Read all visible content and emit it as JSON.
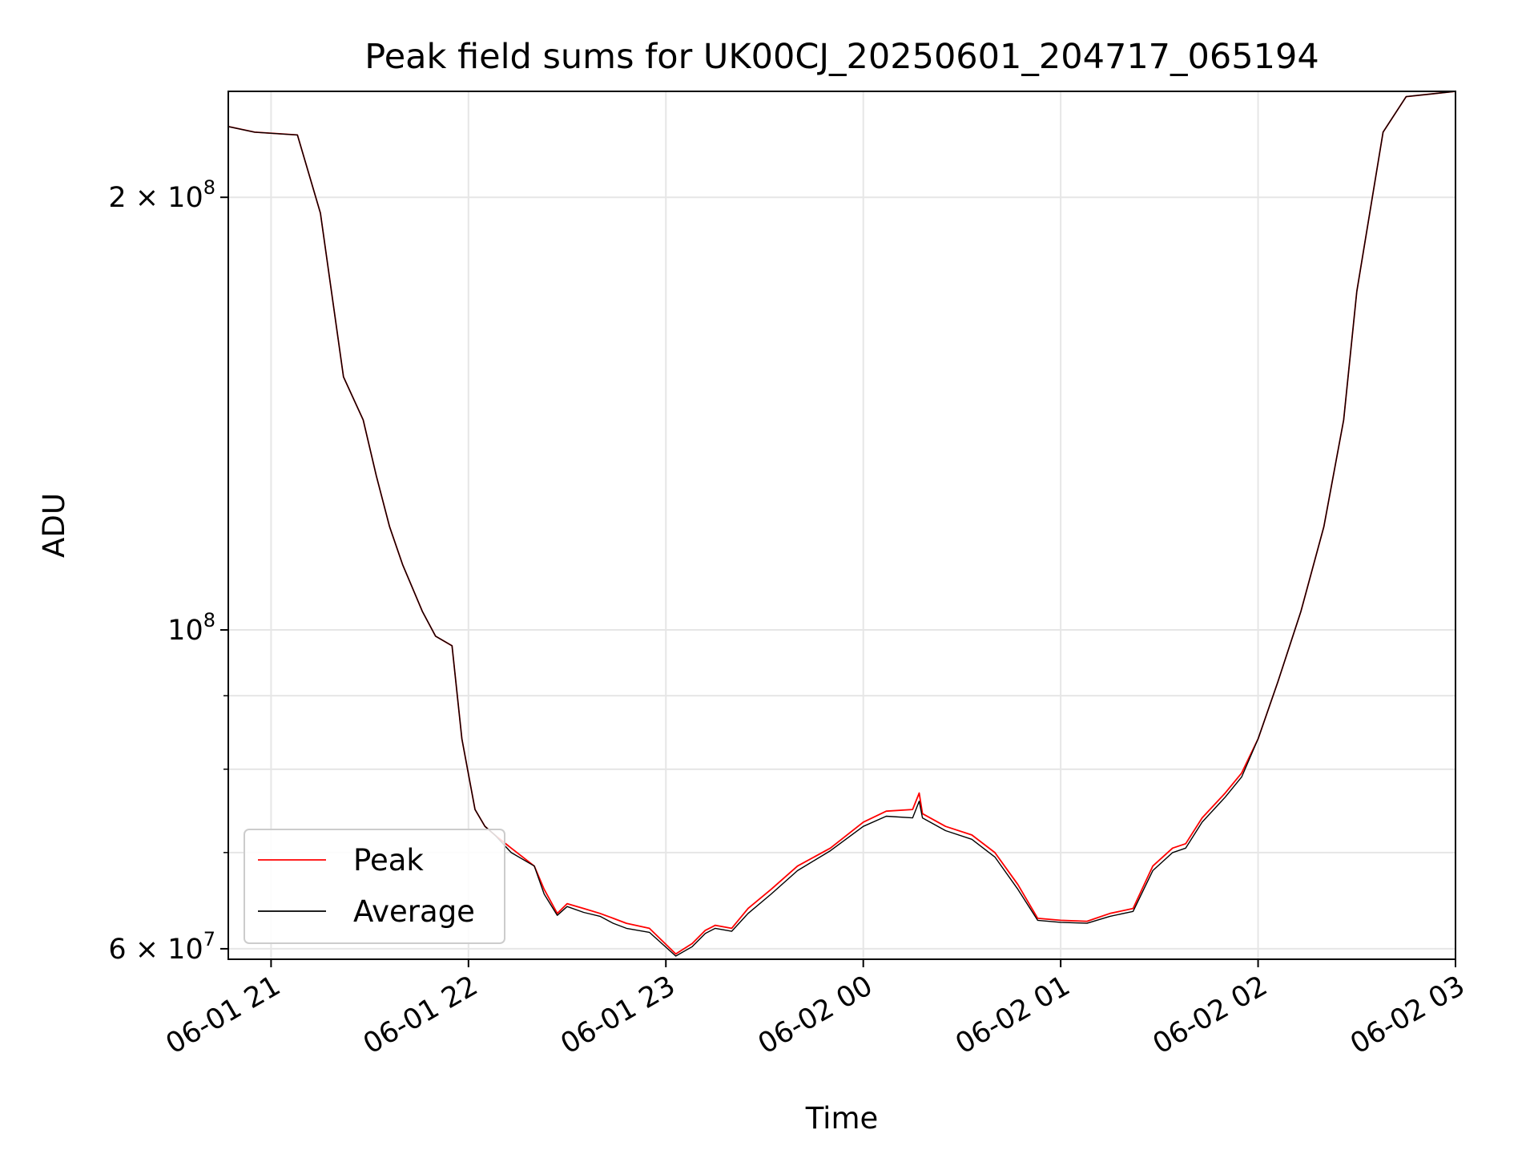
{
  "chart_data": {
    "type": "line",
    "title": "Peak field sums for UK00CJ_20250601_204717_065194",
    "xlabel": "Time",
    "ylabel": "ADU",
    "y_scale": "log",
    "ylim": [
      59000000,
      237000000
    ],
    "xlim": [
      "2025-06-01 20:47",
      "2025-06-02 03:00"
    ],
    "grid": true,
    "legend_placement": "lower-left",
    "x_tick_labels": [
      "06-01 21",
      "06-01 22",
      "06-01 23",
      "06-02 00",
      "06-02 01",
      "06-02 02",
      "06-02 03"
    ],
    "y_tick_labels": [
      {
        "label": "2 × 10",
        "exp": "8",
        "value": 200000000
      },
      {
        "label": "10",
        "exp": "8",
        "value": 100000000
      },
      {
        "label": "6 × 10",
        "exp": "7",
        "value": 60000000
      }
    ],
    "x": [
      "2025-06-01 20:47",
      "2025-06-01 20:55",
      "2025-06-01 21:08",
      "2025-06-01 21:15",
      "2025-06-01 21:22",
      "2025-06-01 21:28",
      "2025-06-01 21:32",
      "2025-06-01 21:36",
      "2025-06-01 21:40",
      "2025-06-01 21:46",
      "2025-06-01 21:50",
      "2025-06-01 21:55",
      "2025-06-01 21:58",
      "2025-06-01 22:02",
      "2025-06-01 22:05",
      "2025-06-01 22:08",
      "2025-06-01 22:13",
      "2025-06-01 22:20",
      "2025-06-01 22:23",
      "2025-06-01 22:27",
      "2025-06-01 22:30",
      "2025-06-01 22:35",
      "2025-06-01 22:40",
      "2025-06-01 22:44",
      "2025-06-01 22:48",
      "2025-06-01 22:55",
      "2025-06-01 23:03",
      "2025-06-01 23:08",
      "2025-06-01 23:12",
      "2025-06-01 23:15",
      "2025-06-01 23:20",
      "2025-06-01 23:25",
      "2025-06-01 23:32",
      "2025-06-01 23:40",
      "2025-06-01 23:50",
      "2025-06-02 00:00",
      "2025-06-02 00:07",
      "2025-06-02 00:15",
      "2025-06-02 00:17",
      "2025-06-02 00:18",
      "2025-06-02 00:25",
      "2025-06-02 00:33",
      "2025-06-02 00:40",
      "2025-06-02 00:47",
      "2025-06-02 00:53",
      "2025-06-02 01:00",
      "2025-06-02 01:08",
      "2025-06-02 01:15",
      "2025-06-02 01:22",
      "2025-06-02 01:28",
      "2025-06-02 01:34",
      "2025-06-02 01:38",
      "2025-06-02 01:43",
      "2025-06-02 01:50",
      "2025-06-02 01:55",
      "2025-06-02 02:00",
      "2025-06-02 02:06",
      "2025-06-02 02:13",
      "2025-06-02 02:20",
      "2025-06-02 02:26",
      "2025-06-02 02:30",
      "2025-06-02 02:38",
      "2025-06-02 02:45",
      "2025-06-02 03:00"
    ],
    "series": [
      {
        "name": "Peak",
        "color": "#ff0000",
        "values": [
          224000000,
          222000000,
          221000000,
          195000000,
          150000000,
          140000000,
          128000000,
          118000000,
          111000000,
          103000000,
          99000000,
          97500000,
          84000000,
          75000000,
          73000000,
          72000000,
          70500000,
          68500000,
          66000000,
          63500000,
          64500000,
          64000000,
          63500000,
          63000000,
          62500000,
          62000000,
          59500000,
          60500000,
          61800000,
          62300000,
          62000000,
          64000000,
          66000000,
          68500000,
          70500000,
          73500000,
          74800000,
          75000000,
          77000000,
          74500000,
          73000000,
          72000000,
          70000000,
          66500000,
          63000000,
          62800000,
          62700000,
          63500000,
          64000000,
          68500000,
          70500000,
          71000000,
          74000000,
          77000000,
          79500000,
          84000000,
          92000000,
          103000000,
          118000000,
          140000000,
          172000000,
          222000000,
          235000000,
          237000000
        ]
      },
      {
        "name": "Average",
        "color": "#000000",
        "values": [
          224000000,
          222000000,
          221000000,
          195000000,
          150000000,
          140000000,
          128000000,
          118000000,
          111000000,
          103000000,
          99000000,
          97500000,
          84000000,
          75000000,
          73000000,
          72000000,
          70000000,
          68500000,
          65500000,
          63300000,
          64200000,
          63600000,
          63200000,
          62500000,
          62000000,
          61600000,
          59300000,
          60200000,
          61500000,
          62000000,
          61700000,
          63500000,
          65500000,
          68000000,
          70200000,
          73000000,
          74200000,
          74000000,
          76000000,
          74000000,
          72500000,
          71500000,
          69500000,
          66000000,
          62800000,
          62600000,
          62500000,
          63200000,
          63700000,
          68000000,
          70000000,
          70500000,
          73500000,
          76500000,
          79000000,
          84000000,
          92000000,
          103000000,
          118000000,
          140000000,
          172000000,
          222000000,
          235000000,
          237000000
        ]
      }
    ]
  }
}
